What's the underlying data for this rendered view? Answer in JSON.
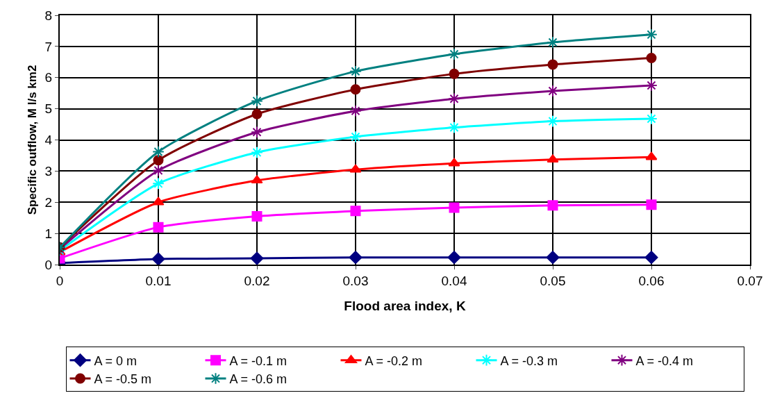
{
  "chart_data": {
    "type": "line",
    "xlabel": "Flood area index, K",
    "ylabel": "Specific outflow, M l/s km2",
    "x": [
      0,
      0.01,
      0.02,
      0.03,
      0.04,
      0.05,
      0.06
    ],
    "xlim": [
      0,
      0.07
    ],
    "xticks": [
      0,
      0.01,
      0.02,
      0.03,
      0.04,
      0.05,
      0.06,
      0.07
    ],
    "ylim": [
      0,
      8
    ],
    "yticks": [
      0,
      1,
      2,
      3,
      4,
      5,
      6,
      7,
      8
    ],
    "grid": true,
    "legend": "bottom",
    "series": [
      {
        "name": "A = 0 m",
        "color": "#000080",
        "marker": "diamond",
        "values": [
          0.05,
          0.18,
          0.2,
          0.23,
          0.23,
          0.23,
          0.23
        ]
      },
      {
        "name": "A = -0.1 m",
        "color": "#ff00ff",
        "marker": "square",
        "values": [
          0.2,
          1.2,
          1.55,
          1.72,
          1.83,
          1.9,
          1.92
        ]
      },
      {
        "name": "A = -0.2 m",
        "color": "#ff0000",
        "marker": "triangle",
        "values": [
          0.4,
          2.0,
          2.7,
          3.05,
          3.25,
          3.37,
          3.45
        ]
      },
      {
        "name": "A = -0.3 m",
        "color": "#00ffff",
        "marker": "cross",
        "values": [
          0.45,
          2.6,
          3.6,
          4.1,
          4.4,
          4.6,
          4.68
        ]
      },
      {
        "name": "A = -0.4 m",
        "color": "#800080",
        "marker": "cross",
        "values": [
          0.5,
          3.02,
          4.25,
          4.93,
          5.32,
          5.57,
          5.75
        ]
      },
      {
        "name": "A = -0.5 m",
        "color": "#800000",
        "marker": "circle",
        "values": [
          0.55,
          3.35,
          4.83,
          5.62,
          6.12,
          6.42,
          6.63
        ]
      },
      {
        "name": "A = -0.6 m",
        "color": "#008080",
        "marker": "cross",
        "values": [
          0.55,
          3.62,
          5.25,
          6.2,
          6.75,
          7.13,
          7.38
        ]
      }
    ]
  }
}
